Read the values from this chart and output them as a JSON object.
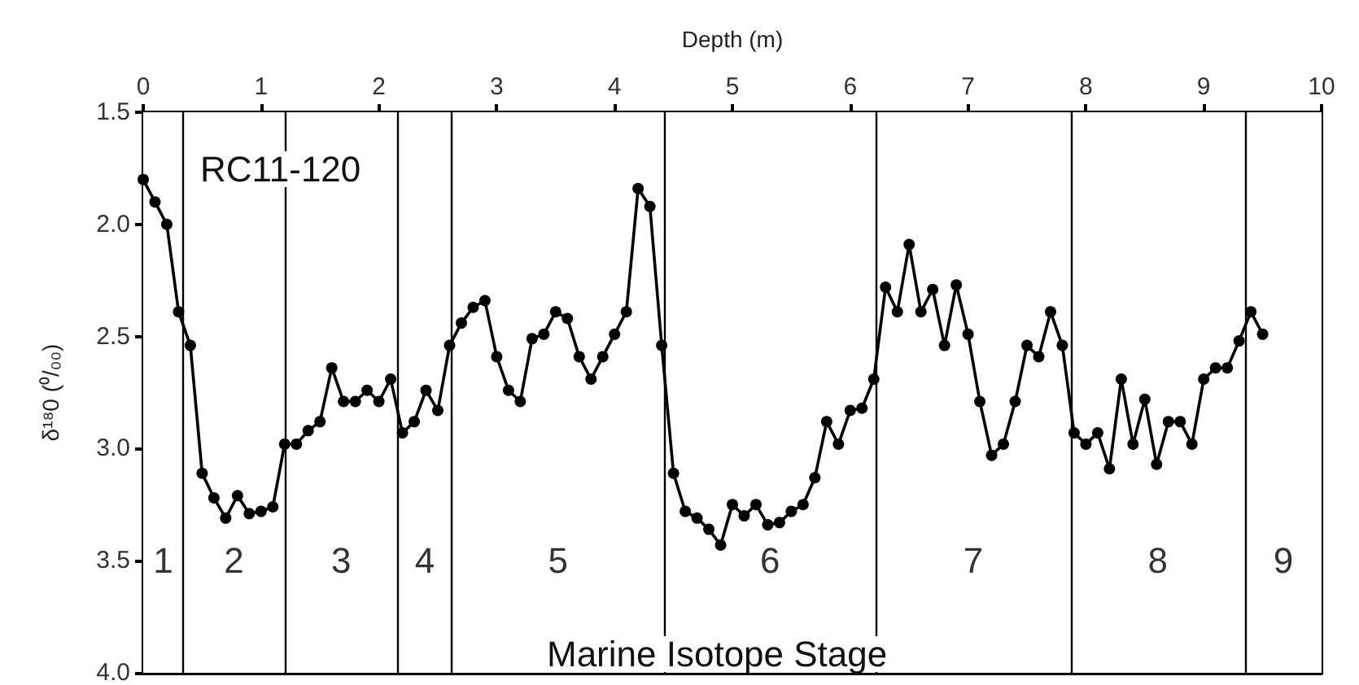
{
  "chart_data": {
    "type": "line",
    "xlabel": "Depth (m)",
    "ylabel": "δ¹⁸0 (⁰/₀₀)",
    "annotations": [
      "RC11-120",
      "Marine Isotope Stage"
    ],
    "x": [
      0,
      0.1,
      0.2,
      0.3,
      0.4,
      0.5,
      0.6,
      0.7,
      0.8,
      0.9,
      1.0,
      1.1,
      1.2,
      1.3,
      1.4,
      1.5,
      1.6,
      1.7,
      1.8,
      1.9,
      2.0,
      2.1,
      2.2,
      2.3,
      2.4,
      2.5,
      2.6,
      2.7,
      2.8,
      2.9,
      3.0,
      3.1,
      3.2,
      3.3,
      3.4,
      3.5,
      3.6,
      3.7,
      3.8,
      3.9,
      4.0,
      4.1,
      4.2,
      4.3,
      4.4,
      4.5,
      4.6,
      4.7,
      4.8,
      4.9,
      5.0,
      5.1,
      5.2,
      5.3,
      5.4,
      5.5,
      5.6,
      5.7,
      5.8,
      5.9,
      6.0,
      6.1,
      6.2,
      6.3,
      6.4,
      6.5,
      6.6,
      6.7,
      6.8,
      6.9,
      7.0,
      7.1,
      7.2,
      7.3,
      7.4,
      7.5,
      7.6,
      7.7,
      7.8,
      7.9,
      8.0,
      8.1,
      8.2,
      8.3,
      8.4,
      8.5,
      8.6,
      8.7,
      8.8,
      8.9,
      9.0,
      9.1,
      9.2,
      9.3,
      9.4,
      9.5
    ],
    "series": [
      {
        "color": "#000000",
        "values": [
          1.8,
          1.9,
          2.0,
          2.39,
          2.54,
          3.11,
          3.22,
          3.31,
          3.21,
          3.29,
          3.28,
          3.26,
          2.98,
          2.98,
          2.92,
          2.88,
          2.64,
          2.79,
          2.79,
          2.74,
          2.79,
          2.69,
          2.93,
          2.88,
          2.74,
          2.83,
          2.54,
          2.44,
          2.37,
          2.34,
          2.59,
          2.74,
          2.79,
          2.51,
          2.49,
          2.39,
          2.42,
          2.59,
          2.69,
          2.59,
          2.49,
          2.39,
          1.84,
          1.92,
          2.54,
          3.11,
          3.28,
          3.31,
          3.36,
          3.43,
          3.25,
          3.3,
          3.25,
          3.34,
          3.33,
          3.28,
          3.25,
          3.13,
          2.88,
          2.98,
          2.83,
          2.82,
          2.69,
          2.28,
          2.39,
          2.09,
          2.39,
          2.29,
          2.54,
          2.27,
          2.49,
          2.79,
          3.03,
          2.98,
          2.79,
          2.54,
          2.59,
          2.39,
          2.54,
          2.93,
          2.98,
          2.93,
          3.09,
          2.69,
          2.98,
          2.78,
          3.07,
          2.88,
          2.88,
          2.98,
          2.69,
          2.64,
          2.64,
          2.52,
          2.39,
          2.49
        ]
      }
    ],
    "xlim": [
      0,
      10
    ],
    "xticks": [
      0,
      1,
      2,
      3,
      4,
      5,
      6,
      7,
      8,
      9,
      10
    ],
    "ylim": [
      4.0,
      1.5
    ],
    "yticks": [
      {
        "value": 1.5,
        "label": "1.5"
      },
      {
        "value": 2.0,
        "label": "2.0"
      },
      {
        "value": 2.5,
        "label": "2.5"
      },
      {
        "value": 3.0,
        "label": "3.0"
      },
      {
        "value": 3.5,
        "label": "3.5"
      },
      {
        "value": 4.0,
        "label": "4.0"
      }
    ],
    "ref_lines": [
      {
        "axis": "x",
        "value": 0.34,
        "color": "#000000"
      },
      {
        "axis": "x",
        "value": 1.2,
        "color": "#000000"
      },
      {
        "axis": "x",
        "value": 2.16,
        "color": "#000000"
      },
      {
        "axis": "x",
        "value": 2.62,
        "color": "#000000"
      },
      {
        "axis": "x",
        "value": 4.42,
        "color": "#000000"
      },
      {
        "axis": "x",
        "value": 6.22,
        "color": "#000000"
      },
      {
        "axis": "x",
        "value": 7.87,
        "color": "#000000"
      },
      {
        "axis": "x",
        "value": 9.35,
        "color": "#000000"
      }
    ],
    "bands": [
      {
        "axis": "x",
        "from": 0,
        "to": 0.34,
        "label": "1",
        "color": "#ffffff"
      },
      {
        "axis": "x",
        "from": 0.34,
        "to": 1.2,
        "label": "2",
        "color": "#ffffff"
      },
      {
        "axis": "x",
        "from": 1.2,
        "to": 2.16,
        "label": "3",
        "color": "#ffffff"
      },
      {
        "axis": "x",
        "from": 2.16,
        "to": 2.62,
        "label": "4",
        "color": "#ffffff"
      },
      {
        "axis": "x",
        "from": 2.62,
        "to": 4.42,
        "label": "5",
        "color": "#ffffff"
      },
      {
        "axis": "x",
        "from": 4.42,
        "to": 6.22,
        "label": "6",
        "color": "#ffffff"
      },
      {
        "axis": "x",
        "from": 6.22,
        "to": 7.87,
        "label": "7",
        "color": "#ffffff"
      },
      {
        "axis": "x",
        "from": 7.87,
        "to": 9.35,
        "label": "8",
        "color": "#ffffff"
      },
      {
        "axis": "x",
        "from": 9.35,
        "to": 10,
        "label": "9",
        "color": "#ffffff"
      }
    ],
    "marker": "circle",
    "line_style": "solid"
  }
}
